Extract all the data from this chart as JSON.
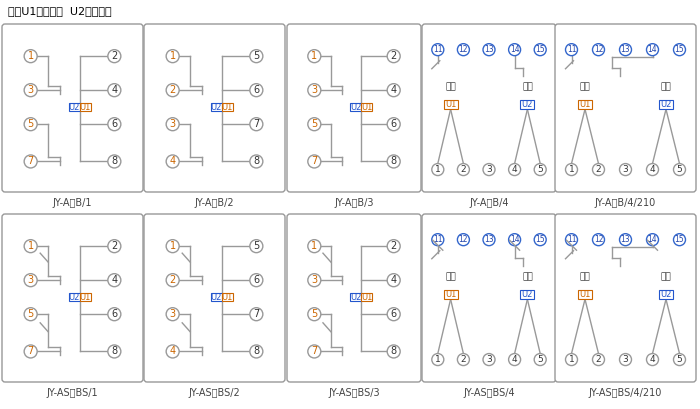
{
  "title_note": "注：U1辅助电源  U2整定电压",
  "bg_color": "#ffffff",
  "box_color": "#999999",
  "line_color": "#999999",
  "u1_color": "#cc6600",
  "u2_color": "#2255cc",
  "label_color": "#444444",
  "top_row_labels": [
    "JY-A，B/1",
    "JY-A，B/2",
    "JY-A，B/3",
    "JY-A，B/4",
    "JY-A，B/4/210"
  ],
  "bot_row_labels": [
    "JY-AS，BS/1",
    "JY-AS，BS/2",
    "JY-AS，BS/3",
    "JY-AS，BS/4",
    "JY-AS，BS/4/210"
  ]
}
